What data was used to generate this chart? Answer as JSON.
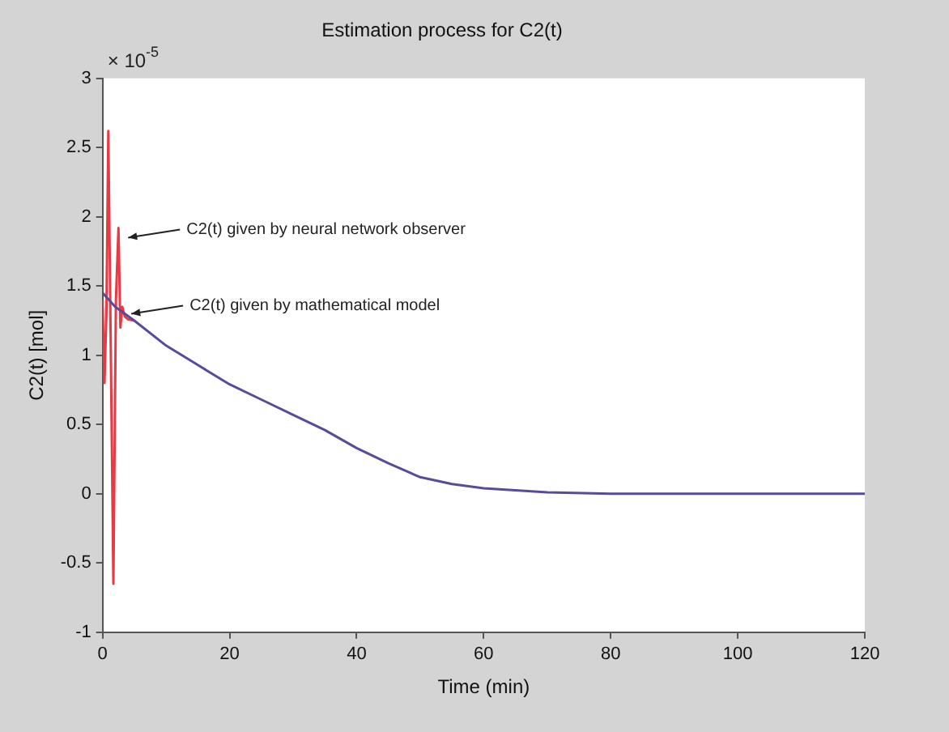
{
  "chart_data": {
    "type": "line",
    "title": "Estimation process for C2(t)",
    "xlabel": "Time (min)",
    "ylabel": "C2(t) [mol]",
    "xlim": [
      0,
      120
    ],
    "xticks": [
      0,
      20,
      40,
      60,
      80,
      100,
      120
    ],
    "ylim": [
      -1,
      3
    ],
    "yticks": [
      -1,
      -0.5,
      0,
      0.5,
      1,
      1.5,
      2,
      2.5,
      3
    ],
    "grid": false,
    "legend": false,
    "marker": "none",
    "line_style": "solid",
    "series": [
      {
        "type": "line",
        "color": "#5a4a9a",
        "x": [
          0,
          2,
          5,
          10,
          15,
          20,
          25,
          30,
          35,
          40,
          45,
          50,
          55,
          60,
          70,
          80,
          120
        ],
        "values": [
          1.45,
          1.35,
          1.25,
          1.07,
          0.93,
          0.79,
          0.68,
          0.57,
          0.46,
          0.33,
          0.22,
          0.12,
          0.07,
          0.04,
          0.01,
          0,
          0
        ]
      },
      {
        "type": "line",
        "color": "#e83a44",
        "x": [
          0,
          0.3,
          0.6,
          0.9,
          1.3,
          1.7,
          2.1,
          2.5,
          2.8,
          3.1,
          3.5,
          4,
          5
        ],
        "values": [
          1.4,
          0.8,
          1.3,
          2.62,
          1.0,
          -0.65,
          1.4,
          1.92,
          1.2,
          1.35,
          1.28,
          1.26,
          1.25
        ]
      }
    ],
    "annotations": [
      "× 10$^{-5}$",
      {
        "text": "C2(t) given by neural network observer",
        "x": 3,
        "y": 1.85
      },
      {
        "text": "C2(t) given by mathematical model",
        "x": 3.5,
        "y": 1.3
      }
    ]
  }
}
